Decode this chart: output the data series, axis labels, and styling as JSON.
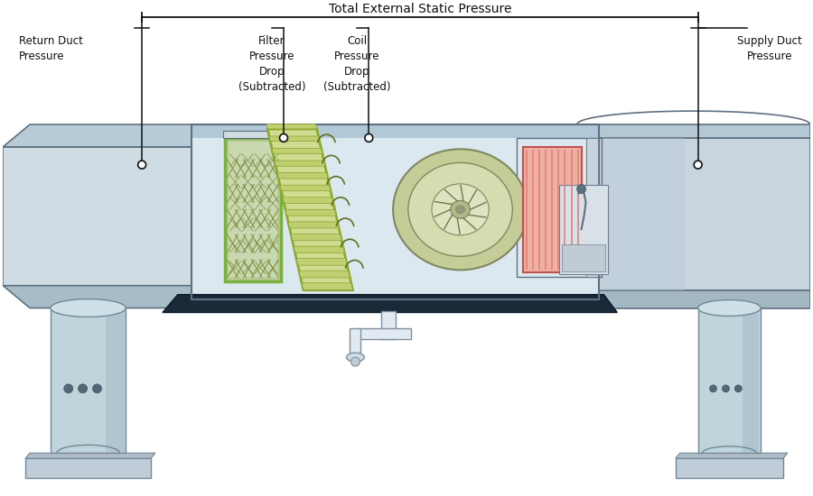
{
  "bg_color": "#ffffff",
  "labels": {
    "total_external": "Total External Static Pressure",
    "return_duct": "Return Duct\nPressure",
    "filter_drop": "Filter\nPressure\nDrop\n(Subtracted)",
    "coil_drop": "Coil\nPressure\nDrop\n(Subtracted)",
    "supply_duct": "Supply Duct\nPressure"
  },
  "colors": {
    "bg_color": "#ffffff",
    "duct_face": "#d0dce4",
    "duct_top": "#b8ccd8",
    "duct_bottom": "#a8bcc8",
    "duct_edge": "#607080",
    "unit_face": "#d8e4ec",
    "unit_top": "#c0d4e0",
    "unit_right": "#a8bcc8",
    "base_dark": "#1a2a38",
    "filter_fill": "#c8d4a0",
    "filter_frame": "#7ab040",
    "filter_mesh": "#a0b060",
    "coil_fill": "#d0dc90",
    "coil_frame": "#8aaa30",
    "coil_slat": "#b8cc60",
    "fan_outer": "#b8c890",
    "fan_mid": "#d0d8a8",
    "fan_inner": "#dce4b8",
    "fan_hub": "#a8b880",
    "fan_edge": "#808860",
    "heat_fill": "#f0a0a0",
    "heat_edge": "#c05050",
    "heat_line": "#d06060",
    "col_body": "#c0d4dc",
    "col_shade": "#a8c0cc",
    "col_base": "#b0c8d4",
    "col_edge": "#708898",
    "col_ellipse": "#d0e0e8",
    "col_dot": "#506878",
    "unit_bg": "#c8d8e4",
    "unit_bg2": "#dce8f0",
    "accessory_fill": "#d0dce8",
    "accessory_edge": "#708090",
    "pipe_fill": "#e0eaf0",
    "pipe_edge": "#8090a0",
    "text_color": "#111111",
    "line_color": "#111111",
    "supply_duct_face": "#c4d4de",
    "supply_duct_curve": "#b0c4d0"
  }
}
